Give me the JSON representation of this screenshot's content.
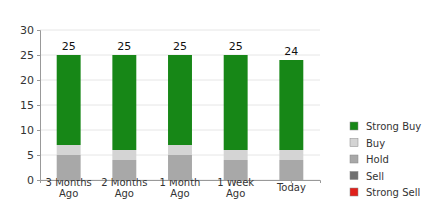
{
  "chart_data": {
    "type": "bar",
    "stacked": true,
    "grid": true,
    "categories": [
      "3 Months Ago",
      "2 Months Ago",
      "1 Month Ago",
      "1 Week Ago",
      "Today"
    ],
    "series": [
      {
        "name": "Strong Buy",
        "color": "#178717",
        "values": [
          18,
          19,
          18,
          19,
          18
        ]
      },
      {
        "name": "Buy",
        "color": "#d4d4d4",
        "values": [
          2,
          2,
          2,
          2,
          2
        ]
      },
      {
        "name": "Hold",
        "color": "#a8a8a8",
        "values": [
          5,
          4,
          5,
          4,
          4
        ]
      },
      {
        "name": "Sell",
        "color": "#707070",
        "values": [
          0,
          0,
          0,
          0,
          0
        ]
      },
      {
        "name": "Strong Sell",
        "color": "#e0201b",
        "values": [
          0,
          0,
          0,
          0,
          0
        ]
      }
    ],
    "totals": [
      25,
      25,
      25,
      25,
      24
    ],
    "ylim": [
      0,
      30
    ],
    "yticks": [
      0,
      5,
      10,
      15,
      20,
      25,
      30
    ]
  }
}
